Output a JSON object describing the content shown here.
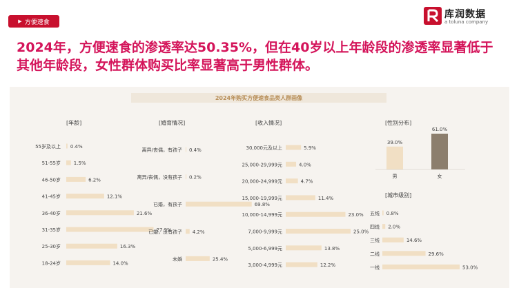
{
  "tag": {
    "label": "方便速食"
  },
  "logo": {
    "name": "库润数据",
    "subtitle": "a toluna company"
  },
  "headline": "2024年，方便速食的渗透率达50.35%，但在40岁以上年龄段的渗透率显著低于其他年龄段，女性群体购买比率显著高于男性群体。",
  "banner": "2024年购买方便速食品类人群画像",
  "colors": {
    "accent": "#c8102e",
    "bar": "#f1dfc4",
    "bar_dark": "#8c7e6d",
    "headline": "#d4145a"
  },
  "chart_data": [
    {
      "type": "bar",
      "orientation": "horizontal",
      "title": "[年龄]",
      "categories": [
        "55岁及以上",
        "51-55岁",
        "46-50岁",
        "41-45岁",
        "36-40岁",
        "31-35岁",
        "25-30岁",
        "18-24岁"
      ],
      "values": [
        0.4,
        1.5,
        6.2,
        12.1,
        21.6,
        27.9,
        16.3,
        14.0
      ],
      "labels": [
        "0.4%",
        "1.5%",
        "6.2%",
        "12.1%",
        "21.6%",
        "27.9%",
        "16.3%",
        "14.0%"
      ]
    },
    {
      "type": "bar",
      "orientation": "horizontal",
      "title": "[婚育情况]",
      "categories": [
        "离异/丧偶，有孩子",
        "离异/丧偶，没有孩子",
        "已婚，有孩子",
        "已婚，没有孩子",
        "未婚"
      ],
      "values": [
        0.4,
        0.2,
        69.8,
        4.2,
        25.4
      ],
      "labels": [
        "0.4%",
        "0.2%",
        "69.8%",
        "4.2%",
        "25.4%"
      ]
    },
    {
      "type": "bar",
      "orientation": "horizontal",
      "title": "[收入情况]",
      "categories": [
        "30,000元及以上",
        "25,000-29,999元",
        "20,000-24,999元",
        "15,000-19,999元",
        "10,000-14,999元",
        "7,000-9,999元",
        "5,000-6,999元",
        "3,000-4,999元"
      ],
      "values": [
        5.9,
        4.0,
        4.7,
        11.4,
        23.0,
        25.0,
        13.8,
        12.2
      ],
      "labels": [
        "5.9%",
        "4.0%",
        "4.7%",
        "11.4%",
        "23.0%",
        "25.0%",
        "13.8%",
        "12.2%"
      ]
    },
    {
      "type": "bar",
      "orientation": "vertical",
      "title": "[性别分布]",
      "categories": [
        "男",
        "女"
      ],
      "values": [
        39.0,
        61.0
      ],
      "labels": [
        "39.0%",
        "61.0%"
      ]
    },
    {
      "type": "bar",
      "orientation": "horizontal",
      "title": "[城市级别]",
      "categories": [
        "五线",
        "四线",
        "三线",
        "二线",
        "一线"
      ],
      "values": [
        0.8,
        2.0,
        14.6,
        29.6,
        53.0
      ],
      "labels": [
        "0.8%",
        "2.0%",
        "14.6%",
        "29.6%",
        "53.0%"
      ]
    }
  ]
}
